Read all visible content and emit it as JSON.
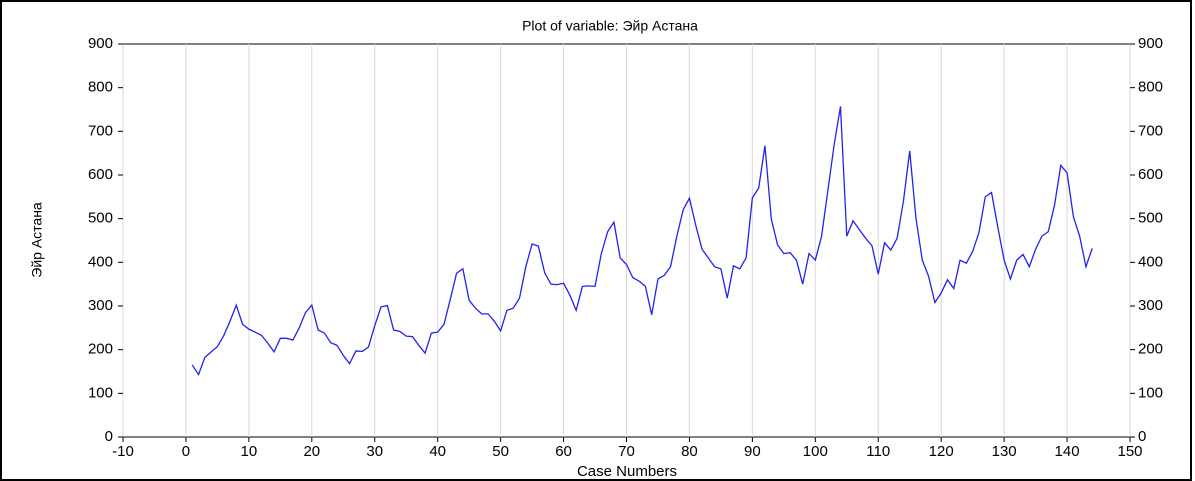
{
  "chart_data": {
    "type": "line",
    "title": "Plot of variable: Эйр Астана",
    "x_label": "Case Numbers",
    "y_label": "Эйр Астана",
    "x": [
      1,
      2,
      3,
      4,
      5,
      6,
      7,
      8,
      9,
      10,
      11,
      12,
      13,
      14,
      15,
      16,
      17,
      18,
      19,
      20,
      21,
      22,
      23,
      24,
      25,
      26,
      27,
      28,
      29,
      30,
      31,
      32,
      33,
      34,
      35,
      36,
      37,
      38,
      39,
      40,
      41,
      42,
      43,
      44,
      45,
      46,
      47,
      48,
      49,
      50,
      51,
      52,
      53,
      54,
      55,
      56,
      57,
      58,
      59,
      60,
      61,
      62,
      63,
      64,
      65,
      66,
      67,
      68,
      69,
      70,
      71,
      72,
      73,
      74,
      75,
      76,
      77,
      78,
      79,
      80,
      81,
      82,
      83,
      84,
      85,
      86,
      87,
      88,
      89,
      90,
      91,
      92,
      93,
      94,
      95,
      96,
      97,
      98,
      99,
      100,
      101,
      102,
      103,
      104,
      105,
      106,
      107,
      108,
      109,
      110,
      111,
      112,
      113,
      114,
      115,
      116,
      117,
      118,
      119,
      120,
      121,
      122,
      123,
      124,
      125,
      126,
      127,
      128,
      129,
      130,
      131,
      132,
      133,
      134,
      135,
      136,
      137,
      138,
      139,
      140,
      141,
      142,
      143,
      144
    ],
    "series": [
      {
        "name": "Эйр Астана",
        "color": "#2222ee",
        "values": [
          165,
          143,
          182,
          195,
          207,
          232,
          265,
          302,
          258,
          247,
          240,
          233,
          215,
          195,
          226,
          226,
          222,
          250,
          285,
          302,
          245,
          238,
          216,
          210,
          187,
          168,
          197,
          196,
          206,
          255,
          298,
          301,
          245,
          242,
          231,
          230,
          210,
          192,
          238,
          240,
          258,
          315,
          375,
          385,
          313,
          295,
          282,
          282,
          265,
          243,
          290,
          295,
          318,
          390,
          442,
          437,
          376,
          350,
          349,
          352,
          325,
          290,
          345,
          346,
          345,
          420,
          470,
          492,
          410,
          395,
          365,
          357,
          345,
          280,
          362,
          370,
          390,
          460,
          520,
          547,
          485,
          430,
          410,
          390,
          385,
          318,
          392,
          385,
          410,
          548,
          570,
          667,
          500,
          440,
          420,
          422,
          405,
          350,
          420,
          405,
          460,
          565,
          670,
          757,
          460,
          495,
          475,
          455,
          438,
          373,
          445,
          428,
          455,
          540,
          655,
          500,
          405,
          368,
          308,
          330,
          360,
          340,
          405,
          398,
          425,
          468,
          550,
          560,
          480,
          405,
          362,
          405,
          418,
          390,
          430,
          460,
          470,
          530,
          622,
          605,
          505,
          460,
          390,
          432
        ]
      }
    ],
    "xlim": [
      -10,
      150
    ],
    "xticks": [
      -10,
      0,
      10,
      20,
      30,
      40,
      50,
      60,
      70,
      80,
      90,
      100,
      110,
      120,
      130,
      140,
      150
    ],
    "ylim": [
      0,
      900
    ],
    "yticks": [
      0,
      100,
      200,
      300,
      400,
      500,
      600,
      700,
      800,
      900
    ],
    "y2lim": [
      0,
      900
    ],
    "y2ticks": [
      0,
      100,
      200,
      300,
      400,
      500,
      600,
      700,
      800,
      900
    ],
    "grid": true
  }
}
